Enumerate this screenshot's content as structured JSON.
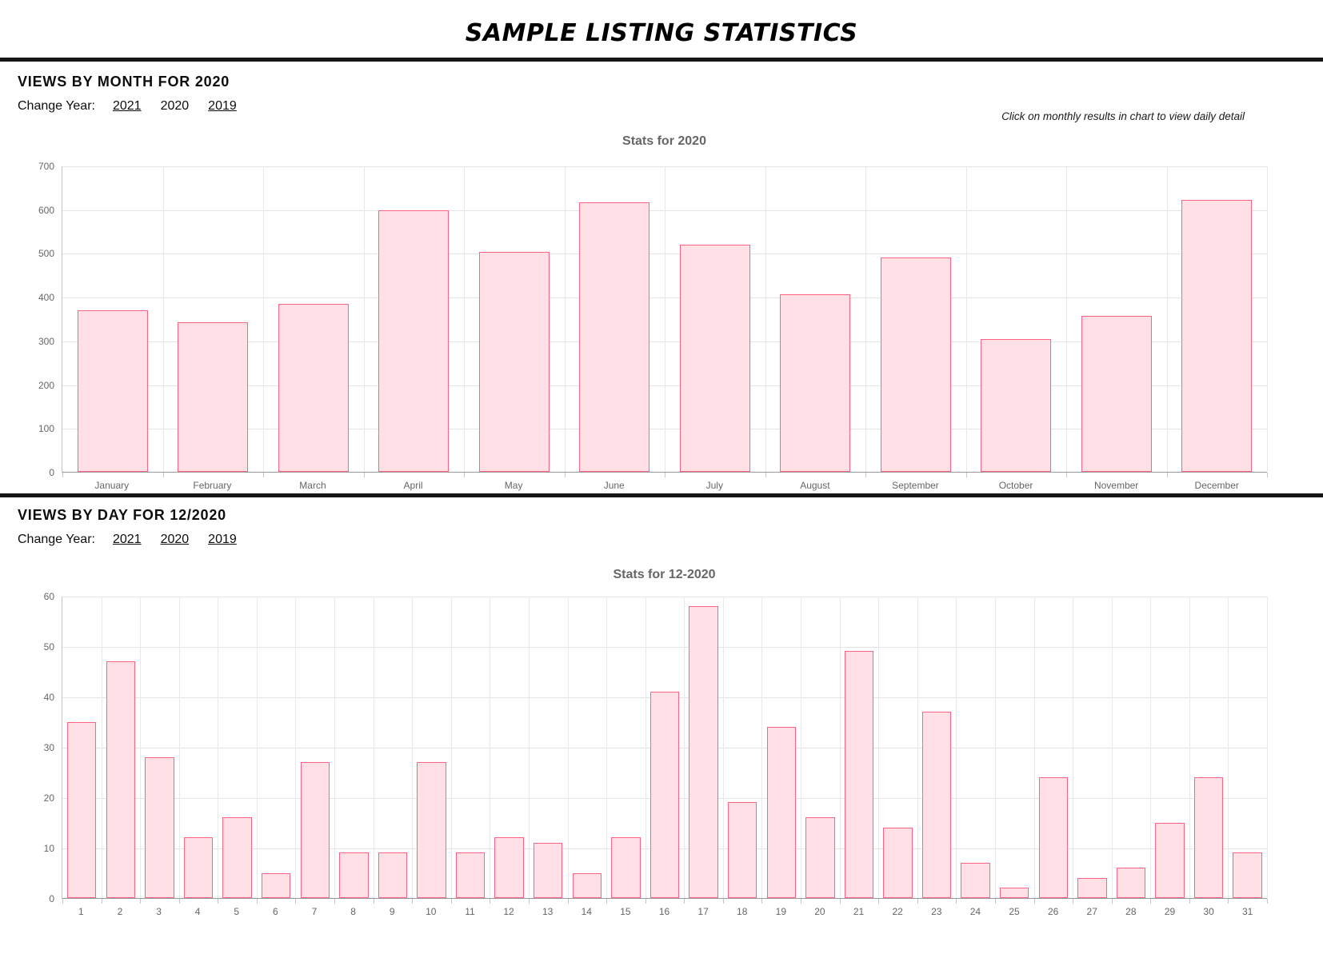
{
  "page_title": "SAMPLE LISTING STATISTICS",
  "sections": [
    {
      "heading": "VIEWS BY MONTH FOR 2020",
      "change_year_label": "Change Year:",
      "year_links": [
        {
          "label": "2021",
          "underlined": true
        },
        {
          "label": "2020",
          "underlined": false
        },
        {
          "label": "2019",
          "underlined": true
        }
      ],
      "note": "Click on monthly results in chart to view daily detail"
    },
    {
      "heading": "VIEWS BY DAY FOR 12/2020",
      "change_year_label": "Change Year:",
      "year_links": [
        {
          "label": "2021",
          "underlined": true
        },
        {
          "label": "2020",
          "underlined": true
        },
        {
          "label": "2019",
          "underlined": true
        }
      ],
      "note": ""
    }
  ],
  "chart_data": [
    {
      "type": "bar",
      "title": "Stats for 2020",
      "categories": [
        "January",
        "February",
        "March",
        "April",
        "May",
        "June",
        "July",
        "August",
        "September",
        "October",
        "November",
        "December"
      ],
      "values": [
        370,
        342,
        383,
        597,
        503,
        616,
        519,
        406,
        490,
        303,
        357,
        622
      ],
      "xlabel": "",
      "ylabel": "",
      "ylim": [
        0,
        700
      ],
      "ytick_step": 100,
      "grid": true,
      "legend": "none",
      "bar_fill": "#ffe0e6",
      "bar_border": "#ff6384"
    },
    {
      "type": "bar",
      "title": "Stats for 12-2020",
      "categories": [
        "1",
        "2",
        "3",
        "4",
        "5",
        "6",
        "7",
        "8",
        "9",
        "10",
        "11",
        "12",
        "13",
        "14",
        "15",
        "16",
        "17",
        "18",
        "19",
        "20",
        "21",
        "22",
        "23",
        "24",
        "25",
        "26",
        "27",
        "28",
        "29",
        "30",
        "31"
      ],
      "values": [
        35,
        47,
        28,
        12,
        16,
        5,
        27,
        9,
        9,
        27,
        9,
        12,
        11,
        5,
        12,
        41,
        58,
        19,
        34,
        16,
        49,
        14,
        37,
        7,
        2,
        24,
        4,
        6,
        15,
        24,
        9
      ],
      "xlabel": "",
      "ylabel": "",
      "ylim": [
        0,
        60
      ],
      "ytick_step": 10,
      "grid": true,
      "legend": "none",
      "bar_fill": "#ffe0e6",
      "bar_border": "#ff6384"
    }
  ]
}
